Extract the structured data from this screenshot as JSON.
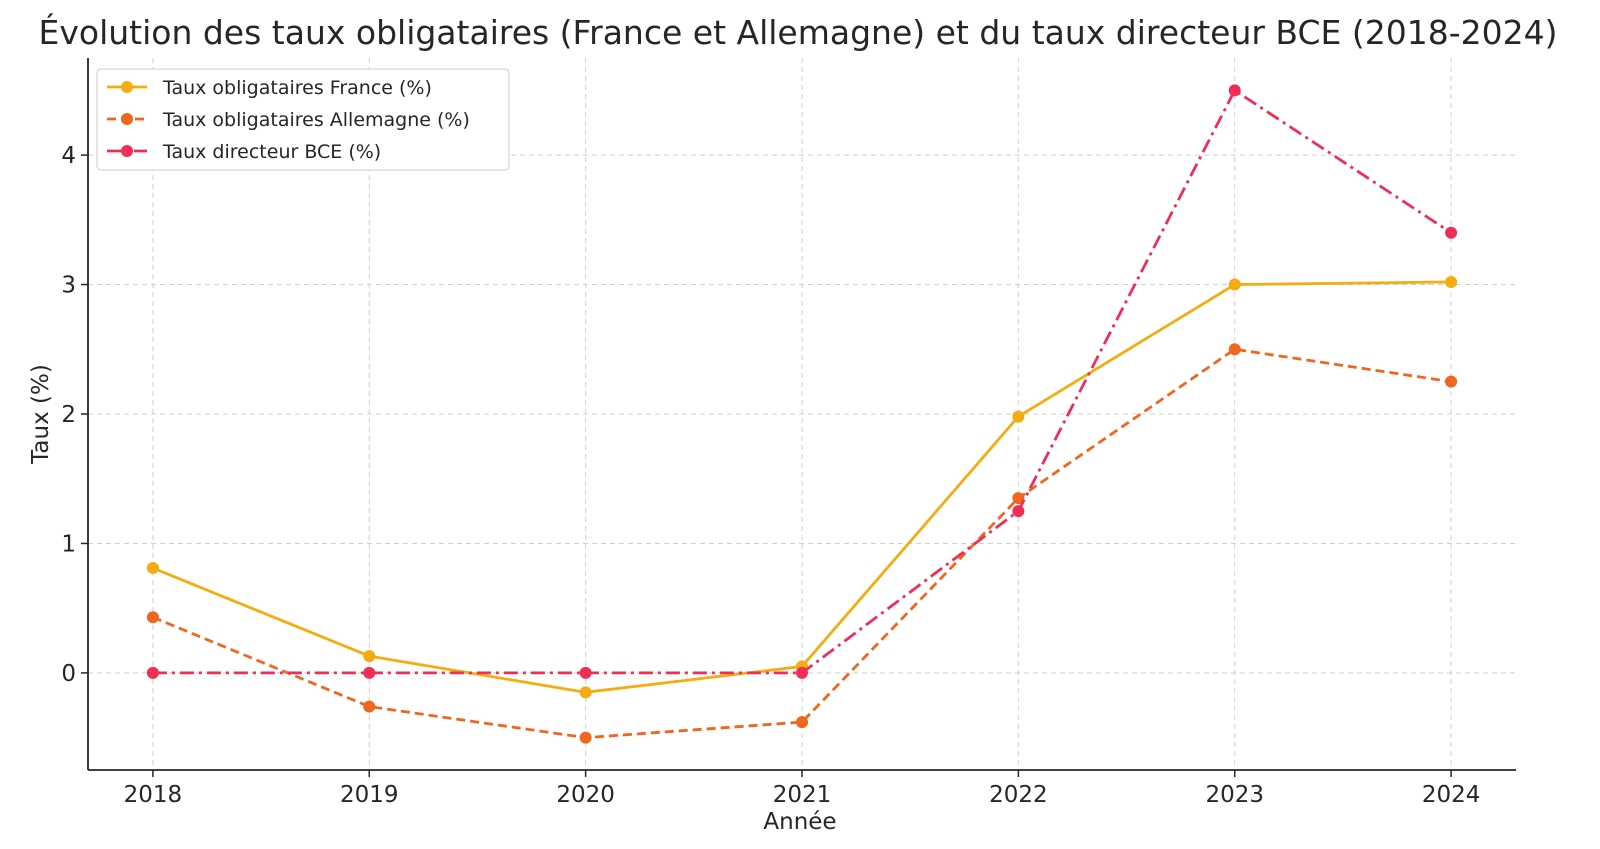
{
  "chart_data": {
    "type": "line",
    "title": "Évolution des taux obligataires (France et Allemagne) et du taux directeur BCE (2018-2024)",
    "xlabel": "Année",
    "ylabel": "Taux (%)",
    "x": [
      2018,
      2019,
      2020,
      2021,
      2022,
      2023,
      2024
    ],
    "x_tick_labels": [
      "2018",
      "2019",
      "2020",
      "2021",
      "2022",
      "2023",
      "2024"
    ],
    "y_ticks": [
      0,
      1,
      2,
      3,
      4
    ],
    "y_tick_labels": [
      "0",
      "1",
      "2",
      "3",
      "4"
    ],
    "xlim": [
      2017.7,
      2024.3
    ],
    "ylim": [
      -0.75,
      4.75
    ],
    "grid": true,
    "legend_position": "top-left",
    "series": [
      {
        "name": "Taux obligataires France (%)",
        "values": [
          0.81,
          0.13,
          -0.15,
          0.05,
          1.98,
          3.0,
          3.02
        ],
        "color": "#f5ac10",
        "line_style": "solid",
        "marker": "circle"
      },
      {
        "name": "Taux obligataires Allemagne (%)",
        "values": [
          0.43,
          -0.26,
          -0.5,
          -0.38,
          1.35,
          2.5,
          2.25
        ],
        "color": "#f0661f",
        "line_style": "dashed",
        "marker": "circle"
      },
      {
        "name": "Taux directeur BCE (%)",
        "values": [
          0.0,
          0.0,
          0.0,
          0.0,
          1.25,
          4.5,
          3.4
        ],
        "color": "#ef2d55",
        "line_style": "dashdot",
        "marker": "circle"
      }
    ]
  }
}
